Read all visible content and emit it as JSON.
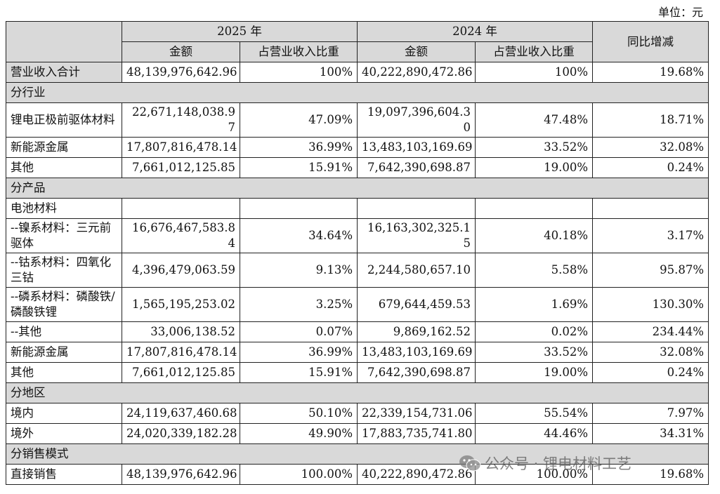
{
  "unit_label": "单位：元",
  "header": {
    "year1": "2025 年",
    "year2": "2024 年",
    "yoy": "同比增减",
    "amount1": "金额",
    "ratio1": "占营业收入比重",
    "amount2": "金额",
    "ratio2": "占营业收入比重"
  },
  "total": [
    "营业收入合计",
    "48,139,976,642.96",
    "100%",
    "40,222,890,472.86",
    "100%",
    "19.68%"
  ],
  "sections": {
    "industry": "分行业",
    "product": "分产品",
    "region": "分地区",
    "sales": "分销售模式"
  },
  "industry_rows": [
    [
      "锂电正极前驱体材料",
      "22,671,148,038.97",
      "47.09%",
      "19,097,396,604.30",
      "47.48%",
      "18.71%"
    ],
    [
      "新能源金属",
      "17,807,816,478.14",
      "36.99%",
      "13,483,103,169.69",
      "33.52%",
      "32.08%"
    ],
    [
      "其他",
      "7,661,012,125.85",
      "15.91%",
      "7,642,390,698.87",
      "19.00%",
      "0.24%"
    ]
  ],
  "battery_label": "电池材料",
  "product_rows": [
    [
      "--镍系材料：三元前驱体",
      "16,676,467,583.84",
      "34.64%",
      "16,163,302,325.15",
      "40.18%",
      "3.17%"
    ],
    [
      "--钴系材料：四氧化三钴",
      "4,396,479,063.59",
      "9.13%",
      "2,244,580,657.10",
      "5.58%",
      "95.87%"
    ],
    [
      "--磷系材料：磷酸铁/磷酸铁锂",
      "1,565,195,253.02",
      "3.25%",
      "679,644,459.53",
      "1.69%",
      "130.30%"
    ],
    [
      "--其他",
      "33,006,138.52",
      "0.07%",
      "9,869,162.52",
      "0.02%",
      "234.44%"
    ],
    [
      "新能源金属",
      "17,807,816,478.14",
      "36.99%",
      "13,483,103,169.69",
      "33.52%",
      "32.08%"
    ],
    [
      "其他",
      "7,661,012,125.85",
      "15.91%",
      "7,642,390,698.87",
      "19.00%",
      "0.24%"
    ]
  ],
  "region_rows": [
    [
      "境内",
      "24,119,637,460.68",
      "50.10%",
      "22,339,154,731.06",
      "55.54%",
      "7.97%"
    ],
    [
      "境外",
      "24,020,339,182.28",
      "49.90%",
      "17,883,735,741.80",
      "44.46%",
      "34.31%"
    ]
  ],
  "sales_rows": [
    [
      "直接销售",
      "48,139,976,642.96",
      "100.00%",
      "40,222,890,472.86",
      "100.00%",
      "19.68%"
    ]
  ],
  "watermark": "公众号 · 锂电材料工艺",
  "icons": {
    "watermark": "wechat-icon"
  }
}
